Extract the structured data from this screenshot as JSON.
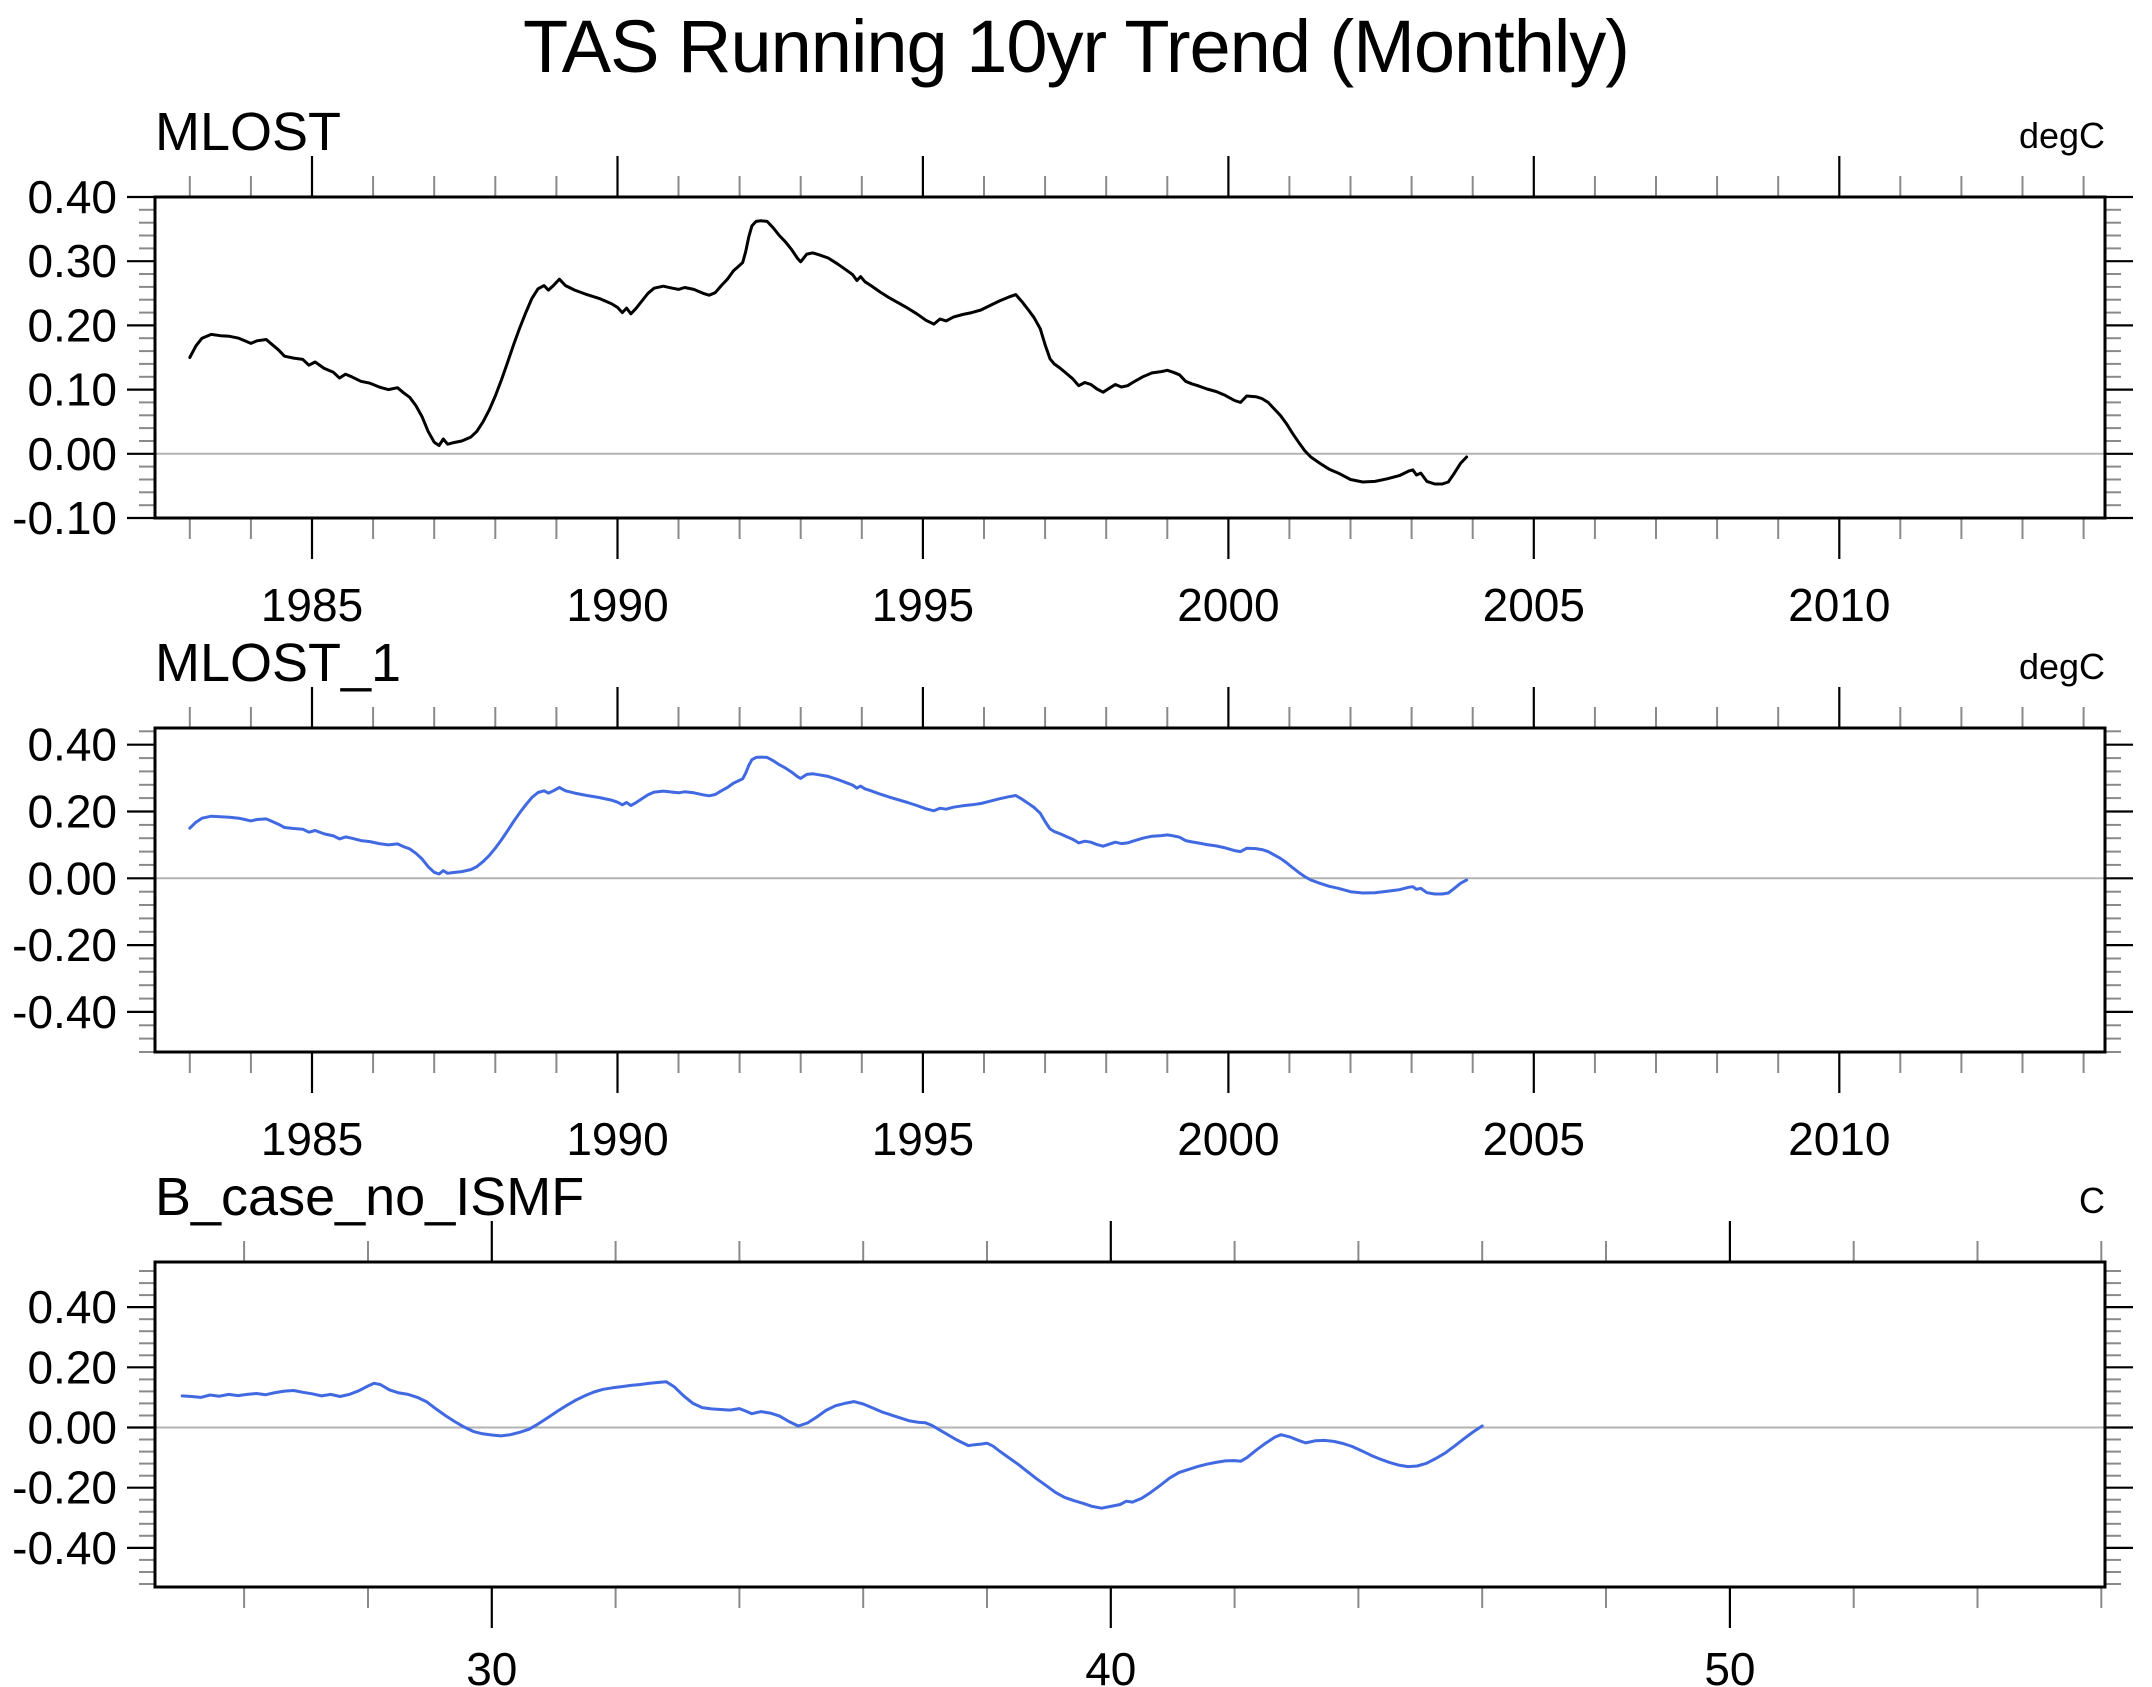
{
  "title": "TAS Running 10yr Trend (Monthly)",
  "style": {
    "axis_color": "#000000",
    "minor_tick_color": "#8a8a8a",
    "zero_line_color": "#b3b3b3",
    "black_series_color": "#000000",
    "blue_series_color": "#4169e1",
    "background": "#ffffff"
  },
  "chart_data": [
    {
      "type": "line",
      "panel_title": "MLOST",
      "units_label": "degC",
      "series_name": "MLOST",
      "data_key": "mlost",
      "line_color": "#000000",
      "xlim": [
        1982.43,
        2014.35
      ],
      "ylim": [
        -0.1,
        0.4
      ],
      "x_major_ticks": [
        1985,
        1990,
        1995,
        2000,
        2005,
        2010
      ],
      "x_tick_labels": [
        "1985",
        "1990",
        "1995",
        "2000",
        "2005",
        "2010"
      ],
      "x_minor_step": 1,
      "y_major_ticks": [
        0.4,
        0.3,
        0.2,
        0.1,
        0.0,
        -0.1
      ],
      "y_tick_labels": [
        "0.40",
        "0.30",
        "0.20",
        "0.10",
        "0.00",
        "-0.10"
      ],
      "y_minor_step": 0.02,
      "zero_line": true,
      "grid": false,
      "legend": "none"
    },
    {
      "type": "line",
      "panel_title": "MLOST_1",
      "units_label": "degC",
      "series_name": "MLOST_1",
      "data_key": "mlost",
      "line_color": "#4169e1",
      "xlim": [
        1982.43,
        2014.35
      ],
      "ylim": [
        -0.52,
        0.45
      ],
      "x_major_ticks": [
        1985,
        1990,
        1995,
        2000,
        2005,
        2010
      ],
      "x_tick_labels": [
        "1985",
        "1990",
        "1995",
        "2000",
        "2005",
        "2010"
      ],
      "x_minor_step": 1,
      "y_major_ticks": [
        0.4,
        0.2,
        0.0,
        -0.2,
        -0.4
      ],
      "y_tick_labels": [
        "0.40",
        "0.20",
        "0.00",
        "-0.20",
        "-0.40"
      ],
      "y_minor_step": 0.04,
      "zero_line": true,
      "grid": false,
      "legend": "none"
    },
    {
      "type": "line",
      "panel_title": "B_case_no_ISMF",
      "units_label": "C",
      "series_name": "B_case_no_ISMF",
      "data_key": "b_case_no_ismf",
      "line_color": "#4169e1",
      "xlim": [
        24.56,
        56.06
      ],
      "ylim": [
        -0.53,
        0.55
      ],
      "x_major_ticks": [
        30,
        40,
        50
      ],
      "x_tick_labels": [
        "30",
        "40",
        "50"
      ],
      "x_minor_step": 2,
      "y_major_ticks": [
        0.4,
        0.2,
        0.0,
        -0.2,
        -0.4
      ],
      "y_tick_labels": [
        "0.40",
        "0.20",
        "0.00",
        "-0.20",
        "-0.40"
      ],
      "y_minor_step": 0.04,
      "zero_line": true,
      "grid": false,
      "legend": "none"
    }
  ],
  "series_data": {
    "mlost": [
      [
        1983.0,
        0.15
      ],
      [
        1983.1,
        0.168
      ],
      [
        1983.2,
        0.18
      ],
      [
        1983.35,
        0.186
      ],
      [
        1983.5,
        0.184
      ],
      [
        1983.65,
        0.183
      ],
      [
        1983.8,
        0.18
      ],
      [
        1983.9,
        0.176
      ],
      [
        1984.0,
        0.172
      ],
      [
        1984.1,
        0.176
      ],
      [
        1984.25,
        0.178
      ],
      [
        1984.35,
        0.17
      ],
      [
        1984.45,
        0.162
      ],
      [
        1984.55,
        0.152
      ],
      [
        1984.7,
        0.149
      ],
      [
        1984.85,
        0.147
      ],
      [
        1984.95,
        0.138
      ],
      [
        1985.05,
        0.143
      ],
      [
        1985.2,
        0.133
      ],
      [
        1985.35,
        0.127
      ],
      [
        1985.45,
        0.118
      ],
      [
        1985.55,
        0.124
      ],
      [
        1985.65,
        0.12
      ],
      [
        1985.8,
        0.113
      ],
      [
        1985.95,
        0.11
      ],
      [
        1986.1,
        0.104
      ],
      [
        1986.25,
        0.1
      ],
      [
        1986.4,
        0.103
      ],
      [
        1986.5,
        0.095
      ],
      [
        1986.6,
        0.088
      ],
      [
        1986.7,
        0.075
      ],
      [
        1986.8,
        0.058
      ],
      [
        1986.9,
        0.035
      ],
      [
        1987.0,
        0.018
      ],
      [
        1987.08,
        0.013
      ],
      [
        1987.15,
        0.023
      ],
      [
        1987.22,
        0.015
      ],
      [
        1987.3,
        0.017
      ],
      [
        1987.45,
        0.02
      ],
      [
        1987.6,
        0.026
      ],
      [
        1987.7,
        0.035
      ],
      [
        1987.8,
        0.05
      ],
      [
        1987.9,
        0.068
      ],
      [
        1988.0,
        0.09
      ],
      [
        1988.1,
        0.115
      ],
      [
        1988.2,
        0.142
      ],
      [
        1988.3,
        0.17
      ],
      [
        1988.4,
        0.196
      ],
      [
        1988.5,
        0.22
      ],
      [
        1988.6,
        0.242
      ],
      [
        1988.7,
        0.257
      ],
      [
        1988.8,
        0.262
      ],
      [
        1988.87,
        0.255
      ],
      [
        1988.95,
        0.262
      ],
      [
        1989.05,
        0.272
      ],
      [
        1989.15,
        0.262
      ],
      [
        1989.3,
        0.255
      ],
      [
        1989.5,
        0.248
      ],
      [
        1989.7,
        0.242
      ],
      [
        1989.9,
        0.234
      ],
      [
        1990.0,
        0.228
      ],
      [
        1990.08,
        0.22
      ],
      [
        1990.15,
        0.227
      ],
      [
        1990.22,
        0.218
      ],
      [
        1990.3,
        0.226
      ],
      [
        1990.4,
        0.238
      ],
      [
        1990.5,
        0.25
      ],
      [
        1990.6,
        0.258
      ],
      [
        1990.75,
        0.261
      ],
      [
        1990.9,
        0.258
      ],
      [
        1991.0,
        0.256
      ],
      [
        1991.1,
        0.259
      ],
      [
        1991.25,
        0.256
      ],
      [
        1991.4,
        0.25
      ],
      [
        1991.5,
        0.247
      ],
      [
        1991.6,
        0.251
      ],
      [
        1991.7,
        0.262
      ],
      [
        1991.8,
        0.272
      ],
      [
        1991.9,
        0.285
      ],
      [
        1991.97,
        0.291
      ],
      [
        1992.05,
        0.298
      ],
      [
        1992.1,
        0.315
      ],
      [
        1992.15,
        0.338
      ],
      [
        1992.2,
        0.355
      ],
      [
        1992.27,
        0.362
      ],
      [
        1992.35,
        0.363
      ],
      [
        1992.45,
        0.362
      ],
      [
        1992.55,
        0.352
      ],
      [
        1992.65,
        0.34
      ],
      [
        1992.75,
        0.33
      ],
      [
        1992.85,
        0.318
      ],
      [
        1992.95,
        0.304
      ],
      [
        1993.0,
        0.299
      ],
      [
        1993.1,
        0.311
      ],
      [
        1993.2,
        0.313
      ],
      [
        1993.3,
        0.31
      ],
      [
        1993.45,
        0.305
      ],
      [
        1993.6,
        0.296
      ],
      [
        1993.75,
        0.286
      ],
      [
        1993.85,
        0.279
      ],
      [
        1993.92,
        0.27
      ],
      [
        1993.98,
        0.276
      ],
      [
        1994.05,
        0.268
      ],
      [
        1994.15,
        0.262
      ],
      [
        1994.3,
        0.252
      ],
      [
        1994.45,
        0.243
      ],
      [
        1994.6,
        0.235
      ],
      [
        1994.75,
        0.227
      ],
      [
        1994.9,
        0.218
      ],
      [
        1995.05,
        0.208
      ],
      [
        1995.18,
        0.202
      ],
      [
        1995.28,
        0.21
      ],
      [
        1995.38,
        0.207
      ],
      [
        1995.5,
        0.213
      ],
      [
        1995.65,
        0.217
      ],
      [
        1995.8,
        0.22
      ],
      [
        1995.95,
        0.224
      ],
      [
        1996.1,
        0.231
      ],
      [
        1996.25,
        0.238
      ],
      [
        1996.4,
        0.244
      ],
      [
        1996.52,
        0.248
      ],
      [
        1996.62,
        0.237
      ],
      [
        1996.72,
        0.225
      ],
      [
        1996.82,
        0.212
      ],
      [
        1996.92,
        0.195
      ],
      [
        1997.0,
        0.17
      ],
      [
        1997.08,
        0.148
      ],
      [
        1997.15,
        0.14
      ],
      [
        1997.25,
        0.133
      ],
      [
        1997.35,
        0.125
      ],
      [
        1997.45,
        0.117
      ],
      [
        1997.55,
        0.106
      ],
      [
        1997.65,
        0.111
      ],
      [
        1997.75,
        0.108
      ],
      [
        1997.85,
        0.101
      ],
      [
        1997.95,
        0.096
      ],
      [
        1998.05,
        0.102
      ],
      [
        1998.15,
        0.108
      ],
      [
        1998.25,
        0.104
      ],
      [
        1998.35,
        0.106
      ],
      [
        1998.45,
        0.112
      ],
      [
        1998.6,
        0.12
      ],
      [
        1998.75,
        0.126
      ],
      [
        1998.9,
        0.128
      ],
      [
        1999.0,
        0.13
      ],
      [
        1999.1,
        0.127
      ],
      [
        1999.2,
        0.123
      ],
      [
        1999.3,
        0.113
      ],
      [
        1999.4,
        0.109
      ],
      [
        1999.5,
        0.106
      ],
      [
        1999.65,
        0.101
      ],
      [
        1999.8,
        0.097
      ],
      [
        1999.95,
        0.091
      ],
      [
        2000.1,
        0.083
      ],
      [
        2000.2,
        0.08
      ],
      [
        2000.3,
        0.09
      ],
      [
        2000.45,
        0.089
      ],
      [
        2000.55,
        0.086
      ],
      [
        2000.65,
        0.08
      ],
      [
        2000.75,
        0.07
      ],
      [
        2000.85,
        0.06
      ],
      [
        2000.95,
        0.047
      ],
      [
        2001.05,
        0.032
      ],
      [
        2001.15,
        0.018
      ],
      [
        2001.25,
        0.005
      ],
      [
        2001.35,
        -0.005
      ],
      [
        2001.5,
        -0.015
      ],
      [
        2001.65,
        -0.024
      ],
      [
        2001.8,
        -0.03
      ],
      [
        2002.0,
        -0.04
      ],
      [
        2002.2,
        -0.044
      ],
      [
        2002.4,
        -0.043
      ],
      [
        2002.6,
        -0.039
      ],
      [
        2002.8,
        -0.034
      ],
      [
        2002.95,
        -0.027
      ],
      [
        2003.02,
        -0.025
      ],
      [
        2003.08,
        -0.033
      ],
      [
        2003.15,
        -0.03
      ],
      [
        2003.25,
        -0.043
      ],
      [
        2003.38,
        -0.047
      ],
      [
        2003.5,
        -0.047
      ],
      [
        2003.6,
        -0.044
      ],
      [
        2003.7,
        -0.03
      ],
      [
        2003.8,
        -0.015
      ],
      [
        2003.9,
        -0.005
      ]
    ],
    "b_case_no_ismf": [
      [
        25.0,
        0.105
      ],
      [
        25.15,
        0.103
      ],
      [
        25.3,
        0.1
      ],
      [
        25.45,
        0.108
      ],
      [
        25.6,
        0.104
      ],
      [
        25.75,
        0.11
      ],
      [
        25.9,
        0.106
      ],
      [
        26.05,
        0.11
      ],
      [
        26.2,
        0.113
      ],
      [
        26.35,
        0.109
      ],
      [
        26.5,
        0.116
      ],
      [
        26.65,
        0.121
      ],
      [
        26.8,
        0.123
      ],
      [
        26.95,
        0.117
      ],
      [
        27.1,
        0.112
      ],
      [
        27.25,
        0.105
      ],
      [
        27.4,
        0.11
      ],
      [
        27.55,
        0.103
      ],
      [
        27.7,
        0.11
      ],
      [
        27.85,
        0.122
      ],
      [
        28.0,
        0.138
      ],
      [
        28.1,
        0.147
      ],
      [
        28.2,
        0.143
      ],
      [
        28.35,
        0.125
      ],
      [
        28.5,
        0.115
      ],
      [
        28.65,
        0.11
      ],
      [
        28.8,
        0.1
      ],
      [
        28.95,
        0.085
      ],
      [
        29.1,
        0.062
      ],
      [
        29.25,
        0.04
      ],
      [
        29.4,
        0.02
      ],
      [
        29.55,
        0.002
      ],
      [
        29.7,
        -0.013
      ],
      [
        29.85,
        -0.021
      ],
      [
        30.0,
        -0.025
      ],
      [
        30.15,
        -0.028
      ],
      [
        30.3,
        -0.024
      ],
      [
        30.45,
        -0.016
      ],
      [
        30.6,
        -0.006
      ],
      [
        30.75,
        0.012
      ],
      [
        30.9,
        0.032
      ],
      [
        31.05,
        0.053
      ],
      [
        31.2,
        0.072
      ],
      [
        31.35,
        0.09
      ],
      [
        31.5,
        0.105
      ],
      [
        31.65,
        0.118
      ],
      [
        31.8,
        0.127
      ],
      [
        31.95,
        0.132
      ],
      [
        32.1,
        0.136
      ],
      [
        32.25,
        0.14
      ],
      [
        32.4,
        0.143
      ],
      [
        32.55,
        0.147
      ],
      [
        32.7,
        0.15
      ],
      [
        32.82,
        0.152
      ],
      [
        32.95,
        0.135
      ],
      [
        33.1,
        0.105
      ],
      [
        33.25,
        0.08
      ],
      [
        33.4,
        0.066
      ],
      [
        33.55,
        0.062
      ],
      [
        33.7,
        0.06
      ],
      [
        33.85,
        0.058
      ],
      [
        34.0,
        0.063
      ],
      [
        34.1,
        0.055
      ],
      [
        34.2,
        0.046
      ],
      [
        34.35,
        0.053
      ],
      [
        34.5,
        0.048
      ],
      [
        34.65,
        0.038
      ],
      [
        34.8,
        0.02
      ],
      [
        34.95,
        0.005
      ],
      [
        35.1,
        0.015
      ],
      [
        35.25,
        0.035
      ],
      [
        35.4,
        0.057
      ],
      [
        35.55,
        0.072
      ],
      [
        35.7,
        0.08
      ],
      [
        35.85,
        0.086
      ],
      [
        36.0,
        0.078
      ],
      [
        36.15,
        0.065
      ],
      [
        36.3,
        0.052
      ],
      [
        36.45,
        0.042
      ],
      [
        36.6,
        0.032
      ],
      [
        36.75,
        0.022
      ],
      [
        36.9,
        0.017
      ],
      [
        37.0,
        0.016
      ],
      [
        37.1,
        0.008
      ],
      [
        37.2,
        -0.004
      ],
      [
        37.3,
        -0.016
      ],
      [
        37.4,
        -0.028
      ],
      [
        37.5,
        -0.04
      ],
      [
        37.6,
        -0.05
      ],
      [
        37.7,
        -0.06
      ],
      [
        37.8,
        -0.057
      ],
      [
        37.9,
        -0.055
      ],
      [
        38.0,
        -0.052
      ],
      [
        38.1,
        -0.062
      ],
      [
        38.2,
        -0.078
      ],
      [
        38.35,
        -0.1
      ],
      [
        38.5,
        -0.122
      ],
      [
        38.65,
        -0.146
      ],
      [
        38.8,
        -0.17
      ],
      [
        38.95,
        -0.192
      ],
      [
        39.1,
        -0.215
      ],
      [
        39.25,
        -0.232
      ],
      [
        39.4,
        -0.243
      ],
      [
        39.55,
        -0.252
      ],
      [
        39.7,
        -0.262
      ],
      [
        39.85,
        -0.268
      ],
      [
        40.0,
        -0.262
      ],
      [
        40.15,
        -0.256
      ],
      [
        40.25,
        -0.245
      ],
      [
        40.35,
        -0.248
      ],
      [
        40.5,
        -0.235
      ],
      [
        40.65,
        -0.215
      ],
      [
        40.8,
        -0.192
      ],
      [
        40.95,
        -0.168
      ],
      [
        41.1,
        -0.15
      ],
      [
        41.25,
        -0.14
      ],
      [
        41.4,
        -0.13
      ],
      [
        41.55,
        -0.122
      ],
      [
        41.7,
        -0.116
      ],
      [
        41.85,
        -0.111
      ],
      [
        42.0,
        -0.11
      ],
      [
        42.1,
        -0.112
      ],
      [
        42.2,
        -0.1
      ],
      [
        42.35,
        -0.075
      ],
      [
        42.5,
        -0.052
      ],
      [
        42.65,
        -0.032
      ],
      [
        42.75,
        -0.024
      ],
      [
        42.9,
        -0.032
      ],
      [
        43.05,
        -0.044
      ],
      [
        43.15,
        -0.051
      ],
      [
        43.3,
        -0.044
      ],
      [
        43.45,
        -0.043
      ],
      [
        43.6,
        -0.046
      ],
      [
        43.75,
        -0.053
      ],
      [
        43.9,
        -0.063
      ],
      [
        44.05,
        -0.077
      ],
      [
        44.2,
        -0.092
      ],
      [
        44.35,
        -0.105
      ],
      [
        44.5,
        -0.116
      ],
      [
        44.65,
        -0.125
      ],
      [
        44.8,
        -0.13
      ],
      [
        44.95,
        -0.128
      ],
      [
        45.1,
        -0.119
      ],
      [
        45.25,
        -0.103
      ],
      [
        45.4,
        -0.085
      ],
      [
        45.55,
        -0.062
      ],
      [
        45.7,
        -0.038
      ],
      [
        45.85,
        -0.015
      ],
      [
        46.0,
        0.005
      ]
    ]
  }
}
